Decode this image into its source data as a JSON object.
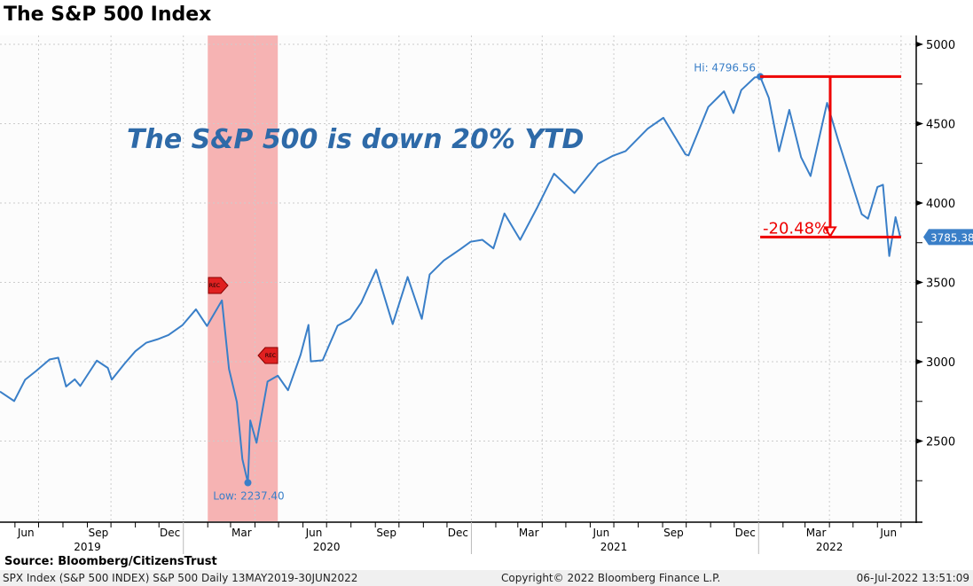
{
  "title": "The S&P 500 Index",
  "source": "Source: Bloomberg/CitizensTrust",
  "footer": {
    "left": "SPX Index (S&P 500 INDEX) S&P 500  Daily 13MAY2019-30JUN2022",
    "center": "Copyright© 2022 Bloomberg Finance L.P.",
    "right": "06-Jul-2022 13:51:09"
  },
  "chart_data": {
    "type": "line",
    "title": "The S&P 500 Index",
    "annotation": "The S&P 500 is down 20% YTD",
    "ylim": [
      2000,
      5050
    ],
    "yticks": [
      2500,
      3000,
      3500,
      4000,
      4500,
      5000
    ],
    "xrange": [
      "2019-05-13",
      "2022-06-30"
    ],
    "month_labels": [
      {
        "d": "2019-06-15",
        "t": "Jun"
      },
      {
        "d": "2019-09-15",
        "t": "Sep"
      },
      {
        "d": "2019-12-15",
        "t": "Dec"
      },
      {
        "d": "2020-03-15",
        "t": "Mar"
      },
      {
        "d": "2020-06-15",
        "t": "Jun"
      },
      {
        "d": "2020-09-15",
        "t": "Sep"
      },
      {
        "d": "2020-12-15",
        "t": "Dec"
      },
      {
        "d": "2021-03-15",
        "t": "Mar"
      },
      {
        "d": "2021-06-15",
        "t": "Jun"
      },
      {
        "d": "2021-09-15",
        "t": "Sep"
      },
      {
        "d": "2021-12-15",
        "t": "Dec"
      },
      {
        "d": "2022-03-15",
        "t": "Mar"
      },
      {
        "d": "2022-06-15",
        "t": "Jun"
      }
    ],
    "years": [
      {
        "d": "2019-09-01",
        "t": "2019"
      },
      {
        "d": "2020-07-01",
        "t": "2020"
      },
      {
        "d": "2021-07-01",
        "t": "2021"
      },
      {
        "d": "2022-04-01",
        "t": "2022"
      }
    ],
    "recession": [
      "2020-02-01",
      "2020-04-30"
    ],
    "rec_label": "REC",
    "high": {
      "d": "2022-01-03",
      "v": 4796.56,
      "label": "Hi: 4796.56"
    },
    "low": {
      "d": "2020-03-23",
      "v": 2237.4,
      "label": "Low: 2237.40"
    },
    "last": {
      "d": "2022-06-30",
      "v": 3785.38,
      "label": "3785.38"
    },
    "drawdown_label": "-20.48%",
    "series": [
      {
        "name": "S&P 500",
        "color": "#3a7fc8",
        "points": [
          [
            "2019-05-13",
            2812
          ],
          [
            "2019-05-31",
            2752
          ],
          [
            "2019-06-14",
            2887
          ],
          [
            "2019-06-28",
            2942
          ],
          [
            "2019-07-15",
            3014
          ],
          [
            "2019-07-26",
            3025
          ],
          [
            "2019-08-05",
            2844
          ],
          [
            "2019-08-16",
            2889
          ],
          [
            "2019-08-23",
            2847
          ],
          [
            "2019-09-13",
            3007
          ],
          [
            "2019-09-27",
            2961
          ],
          [
            "2019-10-02",
            2887
          ],
          [
            "2019-10-18",
            2986
          ],
          [
            "2019-11-01",
            3066
          ],
          [
            "2019-11-15",
            3120
          ],
          [
            "2019-11-29",
            3141
          ],
          [
            "2019-12-13",
            3168
          ],
          [
            "2019-12-31",
            3231
          ],
          [
            "2020-01-17",
            3330
          ],
          [
            "2020-01-31",
            3225
          ],
          [
            "2020-02-19",
            3386
          ],
          [
            "2020-02-28",
            2954
          ],
          [
            "2020-03-09",
            2746
          ],
          [
            "2020-03-16",
            2386
          ],
          [
            "2020-03-23",
            2237
          ],
          [
            "2020-03-26",
            2630
          ],
          [
            "2020-04-03",
            2489
          ],
          [
            "2020-04-17",
            2875
          ],
          [
            "2020-04-30",
            2912
          ],
          [
            "2020-05-13",
            2820
          ],
          [
            "2020-05-29",
            3044
          ],
          [
            "2020-06-08",
            3232
          ],
          [
            "2020-06-11",
            3002
          ],
          [
            "2020-06-26",
            3009
          ],
          [
            "2020-07-15",
            3227
          ],
          [
            "2020-07-31",
            3271
          ],
          [
            "2020-08-14",
            3372
          ],
          [
            "2020-09-02",
            3580
          ],
          [
            "2020-09-23",
            3237
          ],
          [
            "2020-10-12",
            3534
          ],
          [
            "2020-10-30",
            3270
          ],
          [
            "2020-11-09",
            3550
          ],
          [
            "2020-11-27",
            3638
          ],
          [
            "2020-12-18",
            3709
          ],
          [
            "2020-12-31",
            3756
          ],
          [
            "2021-01-15",
            3768
          ],
          [
            "2021-01-29",
            3714
          ],
          [
            "2021-02-12",
            3934
          ],
          [
            "2021-03-04",
            3768
          ],
          [
            "2021-03-26",
            3975
          ],
          [
            "2021-04-16",
            4185
          ],
          [
            "2021-05-12",
            4063
          ],
          [
            "2021-06-11",
            4247
          ],
          [
            "2021-06-30",
            4298
          ],
          [
            "2021-07-16",
            4327
          ],
          [
            "2021-08-13",
            4468
          ],
          [
            "2021-09-02",
            4537
          ],
          [
            "2021-09-30",
            4307
          ],
          [
            "2021-10-04",
            4300
          ],
          [
            "2021-10-29",
            4605
          ],
          [
            "2021-11-18",
            4704
          ],
          [
            "2021-11-30",
            4567
          ],
          [
            "2021-12-10",
            4712
          ],
          [
            "2021-12-27",
            4791
          ],
          [
            "2022-01-03",
            4796
          ],
          [
            "2022-01-14",
            4662
          ],
          [
            "2022-01-27",
            4326
          ],
          [
            "2022-02-09",
            4587
          ],
          [
            "2022-02-24",
            4288
          ],
          [
            "2022-03-08",
            4170
          ],
          [
            "2022-03-29",
            4631
          ],
          [
            "2022-04-12",
            4397
          ],
          [
            "2022-04-29",
            4132
          ],
          [
            "2022-05-12",
            3930
          ],
          [
            "2022-05-20",
            3901
          ],
          [
            "2022-06-01",
            4101
          ],
          [
            "2022-06-08",
            4115
          ],
          [
            "2022-06-16",
            3666
          ],
          [
            "2022-06-24",
            3911
          ],
          [
            "2022-06-30",
            3785
          ]
        ]
      }
    ]
  }
}
